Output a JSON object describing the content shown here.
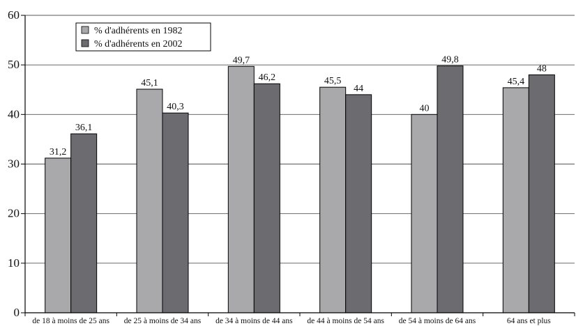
{
  "chart_data": {
    "type": "bar",
    "categories": [
      "de 18 à moins de 25 ans",
      "de 25 à moins de 34 ans",
      "de 34 à moins de 44 ans",
      "de 44 à moins de 54 ans",
      "de 54 à moins de 64 ans",
      "64 ans et plus"
    ],
    "series": [
      {
        "name": "% d'adhérents en 1982",
        "values": [
          31.2,
          45.1,
          49.7,
          45.5,
          40,
          45.4
        ],
        "labels": [
          "31,2",
          "45,1",
          "49,7",
          "45,5",
          "40",
          "45,4"
        ],
        "color": "#a9a9ac"
      },
      {
        "name": "% d'adhérents en 2002",
        "values": [
          36.1,
          40.3,
          46.2,
          44,
          49.8,
          48
        ],
        "labels": [
          "36,1",
          "40,3",
          "46,2",
          "44",
          "49,8",
          "48"
        ],
        "color": "#6b6b70"
      }
    ],
    "ylim": [
      0,
      60
    ],
    "yticks": [
      0,
      10,
      20,
      30,
      40,
      50,
      60
    ],
    "grid": true,
    "legend": "top-left",
    "title": "",
    "xlabel": "",
    "ylabel": ""
  }
}
